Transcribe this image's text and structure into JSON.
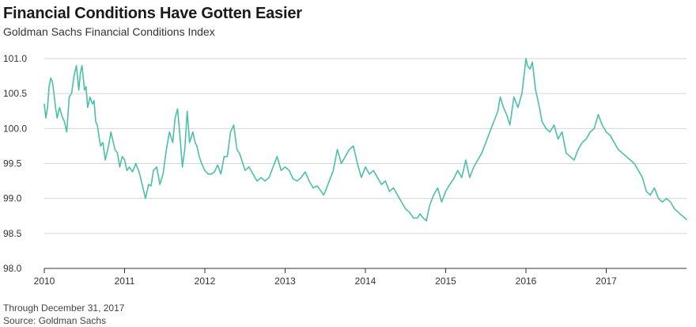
{
  "header": {
    "title": "Financial Conditions Have Gotten Easier",
    "subtitle": "Goldman Sachs Financial Conditions Index"
  },
  "footer": {
    "through": "Through December 31, 2017",
    "source": "Source: Goldman Sachs"
  },
  "colors": {
    "line": "#4cbfaa",
    "grid": "#d6d6d6",
    "axis": "#333333"
  },
  "chart_data": {
    "type": "line",
    "title": "Financial Conditions Have Gotten Easier",
    "subtitle": "Goldman Sachs Financial Conditions Index",
    "xlabel": "",
    "ylabel": "",
    "xlim": [
      2010,
      2018
    ],
    "ylim": [
      98.0,
      101.0
    ],
    "y_ticks": [
      "98.0",
      "98.5",
      "99.0",
      "99.5",
      "100.0",
      "100.5",
      "101.0"
    ],
    "x_ticks": [
      "2010",
      "2011",
      "2012",
      "2013",
      "2014",
      "2015",
      "2016",
      "2017"
    ],
    "grid": "horizontal",
    "series": [
      {
        "x": [
          2010.0,
          2010.02,
          2010.04,
          2010.06,
          2010.08,
          2010.1,
          2010.12,
          2010.14,
          2010.16,
          2010.19,
          2010.22,
          2010.25,
          2010.28,
          2010.31,
          2010.34,
          2010.37,
          2010.4,
          2010.43,
          2010.45,
          2010.47,
          2010.5,
          2010.52,
          2010.54,
          2010.57,
          2010.6,
          2010.62,
          2010.64,
          2010.66,
          2010.68,
          2010.7,
          2010.73,
          2010.76,
          2010.8,
          2010.83,
          2010.86,
          2010.88,
          2010.91,
          2010.94,
          2010.97,
          2011.0,
          2011.03,
          2011.06,
          2011.1,
          2011.14,
          2011.18,
          2011.22,
          2011.26,
          2011.3,
          2011.33,
          2011.36,
          2011.4,
          2011.44,
          2011.48,
          2011.52,
          2011.56,
          2011.6,
          2011.63,
          2011.66,
          2011.69,
          2011.72,
          2011.75,
          2011.78,
          2011.81,
          2011.85,
          2011.88,
          2011.9,
          2011.93,
          2011.96,
          2012.0,
          2012.04,
          2012.08,
          2012.12,
          2012.16,
          2012.2,
          2012.24,
          2012.28,
          2012.32,
          2012.36,
          2012.4,
          2012.43,
          2012.46,
          2012.5,
          2012.55,
          2012.6,
          2012.65,
          2012.7,
          2012.75,
          2012.8,
          2012.85,
          2012.9,
          2012.95,
          2013.0,
          2013.05,
          2013.1,
          2013.15,
          2013.2,
          2013.25,
          2013.3,
          2013.35,
          2013.4,
          2013.45,
          2013.48,
          2013.5,
          2013.55,
          2013.6,
          2013.65,
          2013.7,
          2013.75,
          2013.8,
          2013.85,
          2013.9,
          2013.95,
          2014.0,
          2014.05,
          2014.1,
          2014.15,
          2014.2,
          2014.25,
          2014.3,
          2014.35,
          2014.4,
          2014.45,
          2014.5,
          2014.55,
          2014.6,
          2014.65,
          2014.68,
          2014.72,
          2014.76,
          2014.8,
          2014.85,
          2014.9,
          2014.95,
          2015.0,
          2015.05,
          2015.1,
          2015.15,
          2015.2,
          2015.25,
          2015.3,
          2015.35,
          2015.4,
          2015.45,
          2015.5,
          2015.55,
          2015.6,
          2015.65,
          2015.68,
          2015.72,
          2015.76,
          2015.8,
          2015.85,
          2015.9,
          2015.95,
          2015.98,
          2016.0,
          2016.02,
          2016.05,
          2016.08,
          2016.12,
          2016.16,
          2016.2,
          2016.25,
          2016.3,
          2016.35,
          2016.4,
          2016.45,
          2016.5,
          2016.55,
          2016.6,
          2016.65,
          2016.7,
          2016.75,
          2016.8,
          2016.85,
          2016.9,
          2016.95,
          2017.0,
          2017.05,
          2017.1,
          2017.15,
          2017.2,
          2017.25,
          2017.3,
          2017.35,
          2017.4,
          2017.45,
          2017.5,
          2017.55,
          2017.6,
          2017.65,
          2017.7,
          2017.75,
          2017.8,
          2017.85,
          2017.9,
          2017.95,
          2018.0
        ],
        "values": [
          100.35,
          100.15,
          100.3,
          100.6,
          100.72,
          100.68,
          100.5,
          100.3,
          100.15,
          100.3,
          100.18,
          100.1,
          99.95,
          100.45,
          100.5,
          100.75,
          100.9,
          100.55,
          100.8,
          100.9,
          100.55,
          100.6,
          100.3,
          100.45,
          100.35,
          100.4,
          100.1,
          100.05,
          99.9,
          99.75,
          99.8,
          99.55,
          99.75,
          99.95,
          99.8,
          99.7,
          99.65,
          99.45,
          99.6,
          99.55,
          99.4,
          99.45,
          99.38,
          99.5,
          99.38,
          99.2,
          99.0,
          99.2,
          99.18,
          99.4,
          99.45,
          99.2,
          99.35,
          99.7,
          99.95,
          99.8,
          100.15,
          100.28,
          99.9,
          99.45,
          99.7,
          100.25,
          99.8,
          99.95,
          99.8,
          99.75,
          99.6,
          99.5,
          99.4,
          99.35,
          99.35,
          99.38,
          99.48,
          99.35,
          99.6,
          99.6,
          99.95,
          100.05,
          99.7,
          99.65,
          99.55,
          99.4,
          99.45,
          99.35,
          99.25,
          99.3,
          99.25,
          99.3,
          99.45,
          99.6,
          99.4,
          99.45,
          99.4,
          99.28,
          99.25,
          99.3,
          99.38,
          99.25,
          99.15,
          99.18,
          99.1,
          99.05,
          99.1,
          99.25,
          99.4,
          99.7,
          99.5,
          99.6,
          99.7,
          99.75,
          99.5,
          99.3,
          99.45,
          99.35,
          99.4,
          99.3,
          99.2,
          99.25,
          99.1,
          99.15,
          99.05,
          98.95,
          98.85,
          98.8,
          98.72,
          98.72,
          98.78,
          98.72,
          98.68,
          98.9,
          99.05,
          99.15,
          98.95,
          99.1,
          99.2,
          99.28,
          99.4,
          99.3,
          99.55,
          99.3,
          99.45,
          99.55,
          99.65,
          99.8,
          99.95,
          100.1,
          100.25,
          100.45,
          100.3,
          100.2,
          100.05,
          100.45,
          100.3,
          100.5,
          100.8,
          101.0,
          100.9,
          100.85,
          100.95,
          100.55,
          100.35,
          100.1,
          100.0,
          99.95,
          100.05,
          99.85,
          99.95,
          99.65,
          99.6,
          99.55,
          99.7,
          99.8,
          99.85,
          99.95,
          100.0,
          100.2,
          100.05,
          99.95,
          99.9,
          99.8,
          99.7,
          99.65,
          99.6,
          99.55,
          99.5,
          99.4,
          99.3,
          99.1,
          99.05,
          99.15,
          99.0,
          98.95,
          99.0,
          98.95,
          98.85,
          98.8,
          98.75,
          98.7
        ]
      }
    ]
  }
}
